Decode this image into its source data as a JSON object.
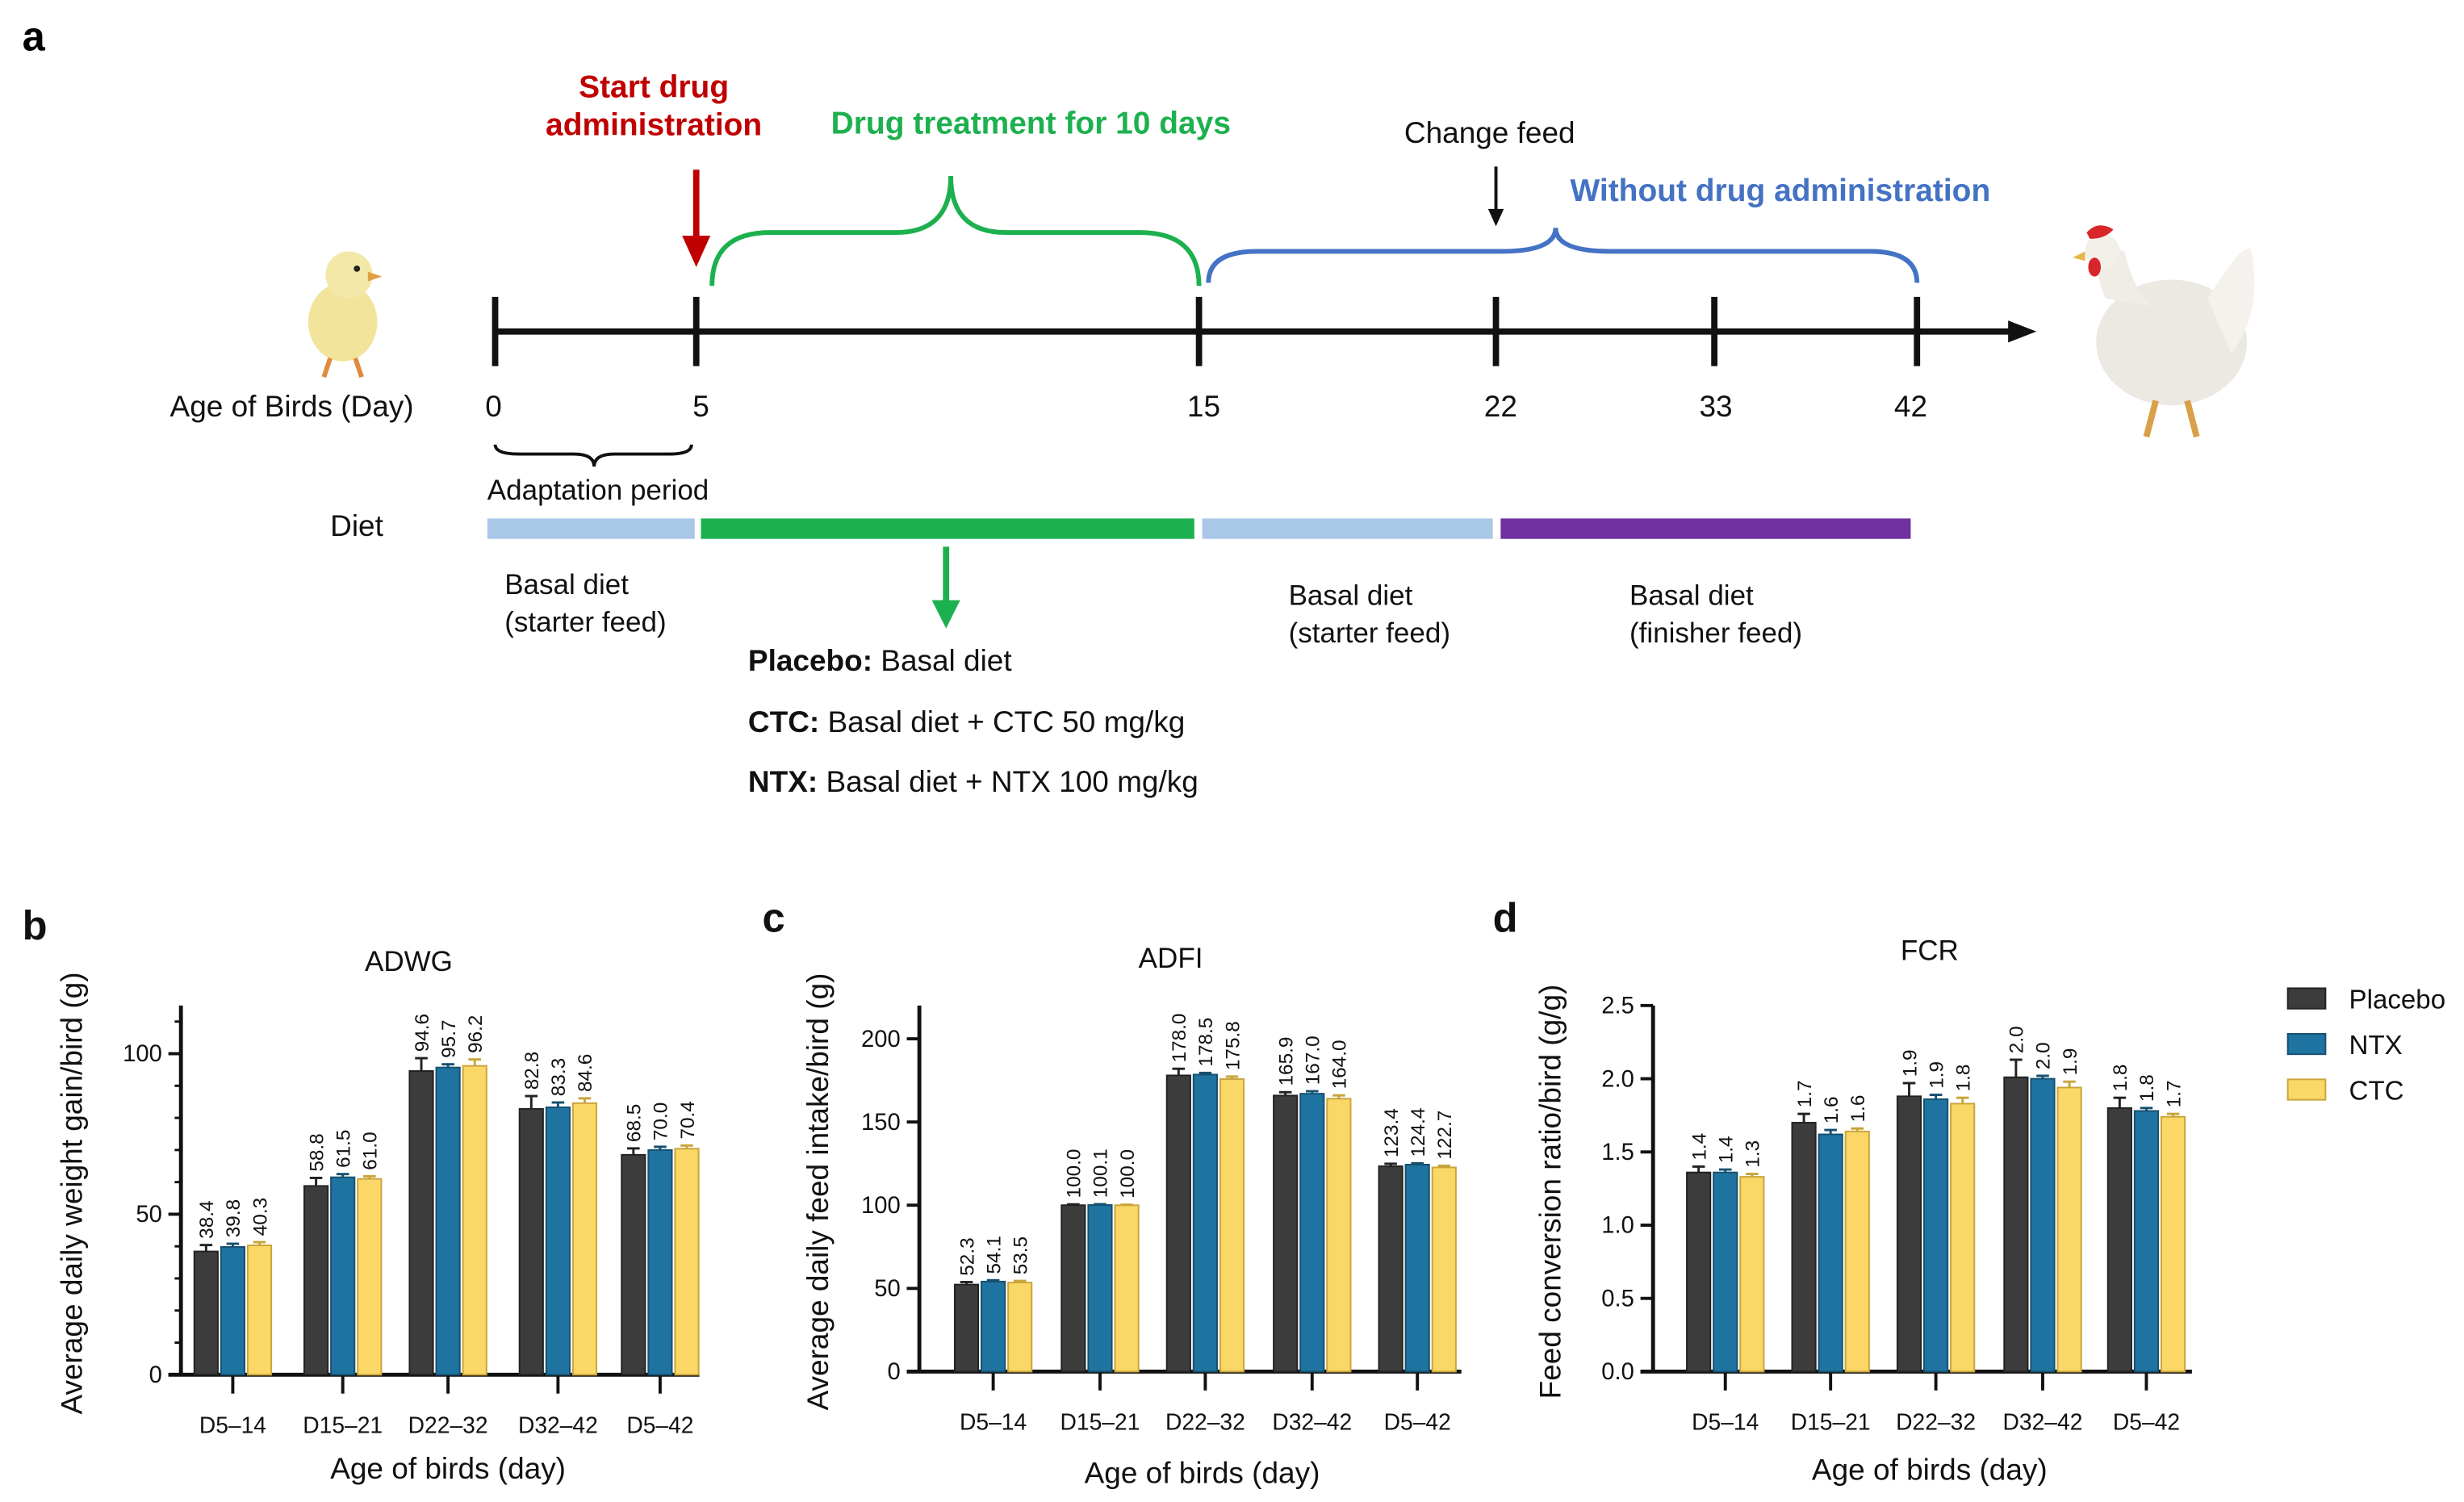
{
  "panel_labels": {
    "a": "a",
    "b": "b",
    "c": "c",
    "d": "d"
  },
  "timeline": {
    "start_drug_line1": "Start drug",
    "start_drug_line2": "administration",
    "treatment": "Drug treatment for 10 days",
    "change_feed": "Change feed",
    "without_drug": "Without drug administration",
    "axis_label": "Age of Birds (Day)",
    "days": [
      "0",
      "5",
      "15",
      "22",
      "33",
      "42"
    ],
    "adaptation": "Adaptation period",
    "diet_label": "Diet",
    "diet_notes": [
      {
        "line1": "Basal diet",
        "line2": "(starter feed)"
      },
      {
        "line1": "Basal diet",
        "line2": "(starter feed)"
      },
      {
        "line1": "Basal diet",
        "line2": "(finisher feed)"
      }
    ],
    "treatments": [
      {
        "name": "Placebo:",
        "desc": " Basal diet"
      },
      {
        "name": "CTC:",
        "desc": " Basal diet + CTC 50 mg/kg"
      },
      {
        "name": "NTX:",
        "desc": " Basal diet + NTX 100 mg/kg"
      }
    ],
    "colors": {
      "red": "#c00000",
      "green": "#1db04f",
      "blue": "#4472c4",
      "light_blue": "#a9c8e8",
      "purple": "#7030a0"
    }
  },
  "legend": {
    "placement": "right",
    "items": [
      "Placebo",
      "NTX",
      "CTC"
    ]
  },
  "series_colors": {
    "Placebo": "#3c3c3c",
    "NTX": "#1f73a0",
    "CTC": "#fbd767"
  },
  "chart_data": [
    {
      "type": "bar",
      "panel": "b",
      "title": "ADWG",
      "xlabel": "Age of birds (day)",
      "ylabel": "Average daily weight gain/bird (g)",
      "ylim": [
        0,
        115
      ],
      "yticks": [
        "0",
        "50",
        "100"
      ],
      "ytick_values": [
        0,
        50,
        100
      ],
      "minor_step": 10,
      "categories": [
        "D5–14",
        "D15–21",
        "D22–32",
        "D32–42",
        "D5–42"
      ],
      "series": [
        {
          "name": "Placebo",
          "values": [
            38.4,
            58.8,
            94.6,
            82.8,
            68.5
          ],
          "labels": [
            "38.4",
            "58.8",
            "94.6",
            "82.8",
            "68.5"
          ],
          "errors": [
            2,
            2.5,
            4,
            4,
            2
          ]
        },
        {
          "name": "NTX",
          "values": [
            39.8,
            61.5,
            95.7,
            83.3,
            70.0
          ],
          "labels": [
            "39.8",
            "61.5",
            "95.7",
            "83.3",
            "70.0"
          ],
          "errors": [
            1,
            1,
            1,
            1.5,
            1
          ]
        },
        {
          "name": "CTC",
          "values": [
            40.3,
            61.0,
            96.2,
            84.6,
            70.4
          ],
          "labels": [
            "40.3",
            "61.0",
            "96.2",
            "84.6",
            "70.4"
          ],
          "errors": [
            1,
            0.8,
            2,
            1.5,
            1
          ]
        }
      ]
    },
    {
      "type": "bar",
      "panel": "c",
      "title": "ADFI",
      "xlabel": "Age of birds (day)",
      "ylabel": "Average daily feed intake/bird (g)",
      "ylim": [
        0,
        220
      ],
      "yticks": [
        "0",
        "50",
        "100",
        "150",
        "200"
      ],
      "ytick_values": [
        0,
        50,
        100,
        150,
        200
      ],
      "minor_step": 0,
      "categories": [
        "D5–14",
        "D15–21",
        "D22–32",
        "D32–42",
        "D5–42"
      ],
      "series": [
        {
          "name": "Placebo",
          "values": [
            52.3,
            100.0,
            178.0,
            165.9,
            123.4
          ],
          "labels": [
            "52.3",
            "100.0",
            "178.0",
            "165.9",
            "123.4"
          ],
          "errors": [
            1.5,
            0.5,
            4,
            2,
            1.5
          ]
        },
        {
          "name": "NTX",
          "values": [
            54.1,
            100.1,
            178.5,
            167.0,
            124.4
          ],
          "labels": [
            "54.1",
            "100.1",
            "178.5",
            "167.0",
            "124.4"
          ],
          "errors": [
            0.8,
            0.5,
            1,
            1.5,
            0.8
          ]
        },
        {
          "name": "CTC",
          "values": [
            53.5,
            100.0,
            175.8,
            164.0,
            122.7
          ],
          "labels": [
            "53.5",
            "100.0",
            "175.8",
            "164.0",
            "122.7"
          ],
          "errors": [
            1,
            0.3,
            1.5,
            2,
            1
          ]
        }
      ]
    },
    {
      "type": "bar",
      "panel": "d",
      "title": "FCR",
      "xlabel": "Age of birds (day)",
      "ylabel": "Feed conversion ratio/bird (g/g)",
      "ylim": [
        0,
        2.5
      ],
      "yticks": [
        "0.0",
        "0.5",
        "1.0",
        "1.5",
        "2.0",
        "2.5"
      ],
      "ytick_values": [
        0,
        0.5,
        1.0,
        1.5,
        2.0,
        2.5
      ],
      "minor_step": 0,
      "categories": [
        "D5–14",
        "D15–21",
        "D22–32",
        "D32–42",
        "D5–42"
      ],
      "series": [
        {
          "name": "Placebo",
          "values": [
            1.36,
            1.7,
            1.88,
            2.01,
            1.8
          ],
          "labels": [
            "1.4",
            "1.7",
            "1.9",
            "2.0",
            "1.8"
          ],
          "errors": [
            0.04,
            0.06,
            0.09,
            0.12,
            0.07
          ]
        },
        {
          "name": "NTX",
          "values": [
            1.36,
            1.62,
            1.86,
            2.0,
            1.78
          ],
          "labels": [
            "1.4",
            "1.6",
            "1.9",
            "2.0",
            "1.8"
          ],
          "errors": [
            0.02,
            0.03,
            0.03,
            0.02,
            0.02
          ]
        },
        {
          "name": "CTC",
          "values": [
            1.33,
            1.64,
            1.83,
            1.94,
            1.74
          ],
          "labels": [
            "1.3",
            "1.6",
            "1.8",
            "1.9",
            "1.7"
          ],
          "errors": [
            0.02,
            0.02,
            0.04,
            0.04,
            0.02
          ]
        }
      ]
    }
  ]
}
